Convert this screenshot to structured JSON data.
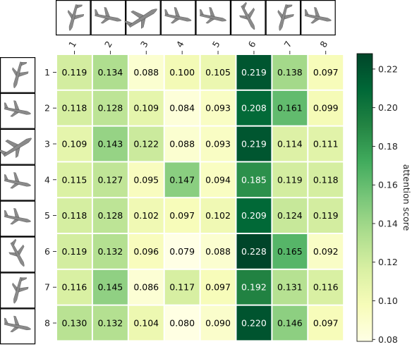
{
  "chart_data": {
    "type": "heatmap",
    "x_tick_labels": [
      "1",
      "2",
      "3",
      "4",
      "5",
      "6",
      "7",
      "8"
    ],
    "y_tick_labels": [
      "1",
      "2",
      "3",
      "4",
      "5",
      "6",
      "7",
      "8"
    ],
    "values": [
      [
        0.119,
        0.134,
        0.088,
        0.1,
        0.105,
        0.219,
        0.138,
        0.097
      ],
      [
        0.118,
        0.128,
        0.109,
        0.084,
        0.093,
        0.208,
        0.161,
        0.099
      ],
      [
        0.109,
        0.143,
        0.122,
        0.088,
        0.093,
        0.219,
        0.114,
        0.111
      ],
      [
        0.115,
        0.127,
        0.095,
        0.147,
        0.094,
        0.185,
        0.119,
        0.118
      ],
      [
        0.118,
        0.128,
        0.102,
        0.097,
        0.102,
        0.209,
        0.124,
        0.119
      ],
      [
        0.119,
        0.132,
        0.096,
        0.079,
        0.088,
        0.228,
        0.165,
        0.092
      ],
      [
        0.116,
        0.145,
        0.086,
        0.117,
        0.097,
        0.192,
        0.131,
        0.116
      ],
      [
        0.13,
        0.132,
        0.104,
        0.08,
        0.09,
        0.22,
        0.146,
        0.097
      ]
    ],
    "value_format": "3 decimals",
    "colormap": "YlGn",
    "color_range": [
      0.079,
      0.228
    ],
    "colorbar": {
      "label": "attention score",
      "ticks": [
        "0.08",
        "0.10",
        "0.12",
        "0.14",
        "0.16",
        "0.18",
        "0.20",
        "0.22"
      ],
      "tick_values": [
        0.08,
        0.1,
        0.12,
        0.14,
        0.16,
        0.18,
        0.2,
        0.22
      ]
    },
    "row_thumbnails": [
      "vertical-airplane",
      "airplane-side",
      "diagonal-airplane",
      "airplane-side",
      "airplane-side",
      "tilted-airplane",
      "vertical-airplane",
      "airplane-side"
    ],
    "column_thumbnails": [
      "vertical-airplane",
      "airplane-side",
      "diagonal-airplane",
      "airplane-side",
      "airplane-side",
      "tilted-airplane",
      "vertical-airplane",
      "airplane-side"
    ]
  },
  "colors": {
    "ylgn_stops": [
      "#ffffe5",
      "#f7fcb9",
      "#d9f0a3",
      "#addd8e",
      "#78c679",
      "#41ab5d",
      "#238443",
      "#006837",
      "#004529"
    ],
    "cell_border": "#ffffff",
    "dark_text": "#000000",
    "light_text": "#ffffff"
  }
}
